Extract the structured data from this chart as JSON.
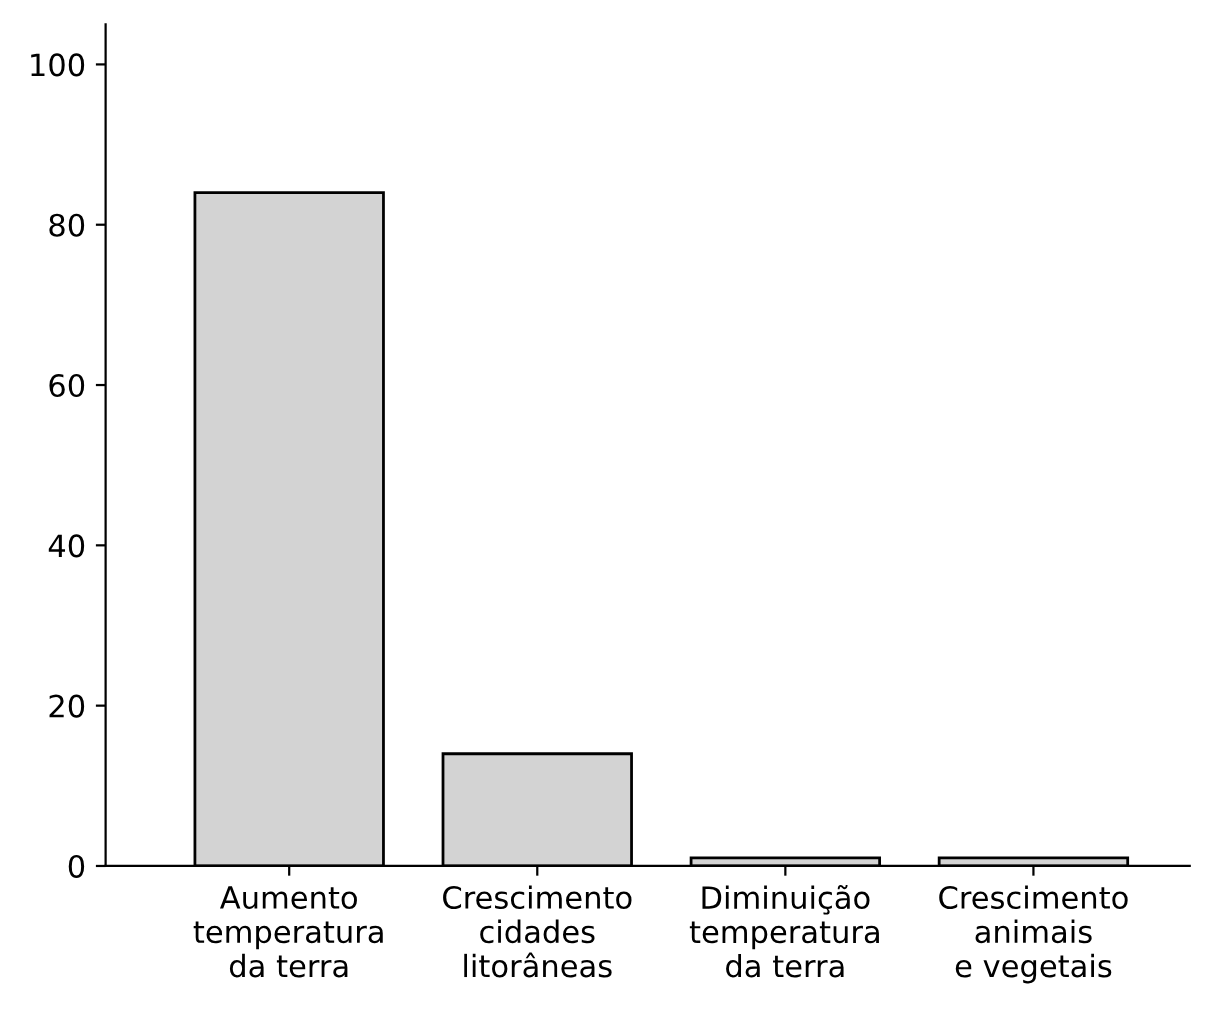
{
  "chart_data": {
    "type": "bar",
    "categories": [
      "Aumento\ntemperatura\nda terra",
      "Crescimento\ncidades\nlitorâneas",
      "Diminuição\ntemperatura\nda terra",
      "Crescimento\nanimais\ne vegetais"
    ],
    "values": [
      84,
      14,
      1,
      1
    ],
    "color": "#d3d3d3",
    "ylim": [
      0,
      105
    ],
    "yticks": [
      0,
      20,
      40,
      60,
      80,
      100
    ],
    "grid": false
  }
}
